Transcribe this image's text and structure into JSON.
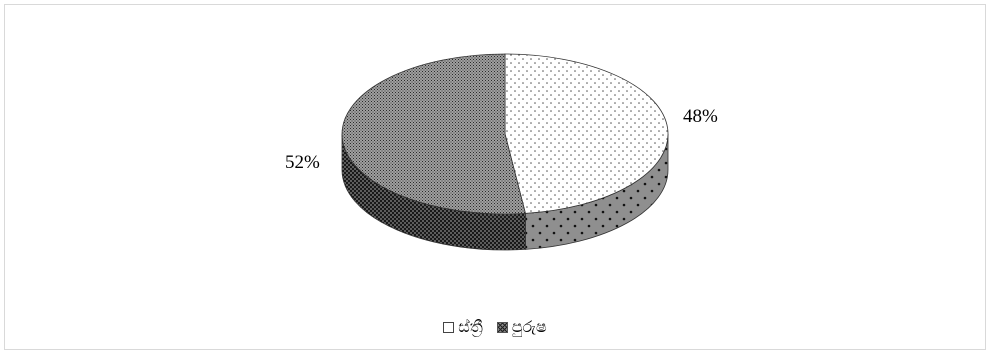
{
  "chart_data": {
    "type": "pie",
    "style": "3d",
    "title": "",
    "slices": [
      {
        "label": "ස්ත්‍රී",
        "value": 48,
        "data_label": "48%",
        "pattern": "dots",
        "color": "#ffffff"
      },
      {
        "label": "පුරුෂ",
        "value": 52,
        "data_label": "52%",
        "pattern": "crosshatch",
        "color": "#8c8c8c"
      }
    ],
    "legend": {
      "placement": "bottom",
      "entries": [
        "ස්ත්‍රී",
        "පුරුෂ"
      ]
    }
  }
}
